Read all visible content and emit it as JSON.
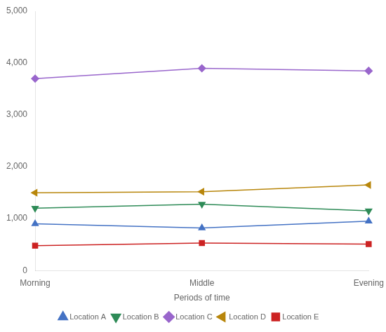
{
  "chart_data": {
    "type": "line",
    "x_label": "Periods of time",
    "categories": [
      "Morning",
      "Middle",
      "Evening"
    ],
    "series": [
      {
        "name": "Location A",
        "color": "#4472c4",
        "marker": "triangle_up",
        "values": [
          900,
          820,
          950
        ]
      },
      {
        "name": "Location B",
        "color": "#2e8b57",
        "marker": "triangle_down",
        "values": [
          1200,
          1280,
          1150
        ]
      },
      {
        "name": "Location C",
        "color": "#9966cc",
        "marker": "diamond",
        "values": [
          3700,
          3900,
          3850
        ]
      },
      {
        "name": "Location D",
        "color": "#b8860b",
        "marker": "triangle_left",
        "values": [
          1500,
          1520,
          1650
        ]
      },
      {
        "name": "Location E",
        "color": "#cc2222",
        "marker": "square",
        "values": [
          480,
          530,
          510
        ]
      }
    ],
    "ylim": [
      0,
      5000
    ],
    "yticks": [
      0,
      {
        "value": 1000,
        "label": "1,000"
      },
      {
        "value": 2000,
        "label": "2,000"
      },
      {
        "value": 3000,
        "label": "3,000"
      },
      {
        "value": 4000,
        "label": "4,000"
      },
      {
        "value": 5000,
        "label": "5,000"
      }
    ],
    "grid": false,
    "legend": "bottom"
  }
}
